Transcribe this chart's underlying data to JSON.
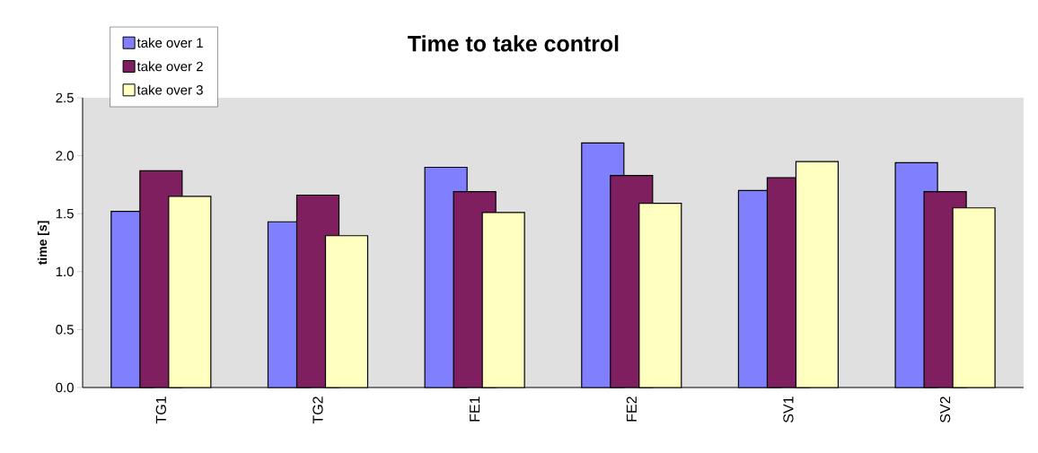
{
  "chart_data": {
    "type": "bar",
    "title": "Time to take control",
    "ylabel": "time [s]",
    "categories": [
      "TG1",
      "TG2",
      "FE1",
      "FE2",
      "SV1",
      "SV2"
    ],
    "series": [
      {
        "name": "take over 1",
        "color": "#8080ff",
        "values": [
          1.52,
          1.43,
          1.9,
          2.11,
          1.7,
          1.94
        ]
      },
      {
        "name": "take over 2",
        "color": "#7f1f5f",
        "values": [
          1.87,
          1.66,
          1.69,
          1.83,
          1.81,
          1.69
        ]
      },
      {
        "name": "take over 3",
        "color": "#ffffc0",
        "values": [
          1.65,
          1.31,
          1.51,
          1.59,
          1.95,
          1.55
        ]
      }
    ],
    "ylim": [
      0,
      2.5
    ],
    "yticks": [
      {
        "value": 0,
        "label": "0.0"
      },
      {
        "value": 0.5,
        "label": "0.5"
      },
      {
        "value": 1,
        "label": "1.0"
      },
      {
        "value": 1.5,
        "label": "1.5"
      },
      {
        "value": 2,
        "label": "2.0"
      },
      {
        "value": 2.5,
        "label": "2.5"
      }
    ],
    "grid": false,
    "legend": "top left"
  }
}
